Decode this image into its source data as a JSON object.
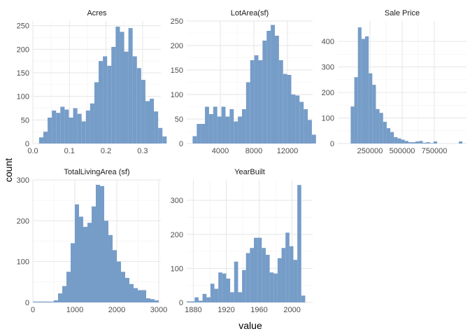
{
  "chart_data": {
    "type": "bar",
    "subtype": "faceted histogram",
    "xlabel": "value",
    "ylabel": "count",
    "grid": true,
    "bar_color": "#6f98c5",
    "panels": [
      {
        "title": "Acres",
        "xlim": [
          0,
          0.35
        ],
        "ylim": [
          0,
          260
        ],
        "x_ticks": [
          0.0,
          0.1,
          0.2,
          0.3
        ],
        "x_tick_labels": [
          "0.0",
          "0.1",
          "0.2",
          "0.3"
        ],
        "y_ticks": [
          0,
          50,
          100,
          150,
          200,
          250
        ],
        "y_tick_labels": [
          "0",
          "50",
          "100",
          "150",
          "200",
          "250"
        ],
        "bin_start": 0.017,
        "bin_width": 0.01163,
        "counts": [
          13,
          25,
          55,
          70,
          65,
          78,
          72,
          55,
          75,
          63,
          47,
          70,
          85,
          130,
          175,
          185,
          165,
          205,
          248,
          237,
          195,
          245,
          185,
          160,
          135,
          90,
          95,
          68,
          33,
          15
        ]
      },
      {
        "title": "LotArea(sf)",
        "xlim": [
          0,
          15000
        ],
        "ylim": [
          0,
          250
        ],
        "x_ticks": [
          4000,
          8000,
          12000
        ],
        "x_tick_labels": [
          "4000",
          "8000",
          "12000"
        ],
        "y_ticks": [
          0,
          50,
          100,
          150,
          200,
          250
        ],
        "y_tick_labels": [
          "0",
          "50",
          "100",
          "150",
          "200",
          "250"
        ],
        "bin_start": 700,
        "bin_width": 490,
        "counts": [
          15,
          40,
          40,
          75,
          60,
          75,
          55,
          75,
          55,
          70,
          45,
          55,
          70,
          125,
          170,
          180,
          170,
          210,
          230,
          242,
          220,
          170,
          142,
          140,
          100,
          98,
          85,
          70,
          48,
          18
        ]
      },
      {
        "title": "Sale Price",
        "xlim": [
          0,
          1000000
        ],
        "ylim": [
          0,
          480
        ],
        "x_ticks": [
          250000,
          500000,
          750000
        ],
        "x_tick_labels": [
          "250000",
          "500000",
          "750000"
        ],
        "y_ticks": [
          0,
          100,
          200,
          300,
          400
        ],
        "y_tick_labels": [
          "0",
          "100",
          "200",
          "300",
          "400"
        ],
        "bin_start": 100000,
        "bin_width": 28000,
        "counts": [
          145,
          260,
          455,
          410,
          420,
          275,
          230,
          135,
          120,
          85,
          60,
          45,
          25,
          20,
          15,
          10,
          5,
          5,
          8,
          10,
          3,
          5,
          2,
          8,
          0,
          0,
          0,
          0,
          0,
          0,
          8
        ]
      },
      {
        "title": "TotalLivingArea (sf)",
        "xlim": [
          0,
          3050
        ],
        "ylim": [
          0,
          300
        ],
        "x_ticks": [
          0,
          1000,
          2000,
          3000
        ],
        "x_tick_labels": [
          "0",
          "1000",
          "2000",
          "3000"
        ],
        "y_ticks": [
          0,
          100,
          200,
          300
        ],
        "y_tick_labels": [
          "0",
          "100",
          "200",
          "300"
        ],
        "bin_start": 0,
        "bin_width": 100,
        "counts": [
          2,
          2,
          2,
          2,
          2,
          5,
          22,
          40,
          75,
          145,
          240,
          210,
          185,
          195,
          235,
          288,
          285,
          200,
          165,
          128,
          100,
          75,
          60,
          45,
          35,
          30,
          30,
          10,
          8,
          5
        ]
      },
      {
        "title": "YearBuilt",
        "xlim": [
          1872,
          2025
        ],
        "ylim": [
          0,
          360
        ],
        "x_ticks": [
          1880,
          1920,
          1960,
          2000
        ],
        "x_tick_labels": [
          "1880",
          "1920",
          "1960",
          "2000"
        ],
        "y_ticks": [
          0,
          100,
          200,
          300
        ],
        "y_tick_labels": [
          "0",
          "100",
          "200",
          "300"
        ],
        "bin_start": 1872,
        "bin_width": 4.8,
        "counts": [
          3,
          3,
          15,
          5,
          25,
          15,
          55,
          40,
          88,
          85,
          70,
          30,
          120,
          30,
          95,
          145,
          160,
          190,
          190,
          160,
          140,
          88,
          85,
          130,
          160,
          205,
          165,
          125,
          345,
          20
        ]
      }
    ]
  }
}
